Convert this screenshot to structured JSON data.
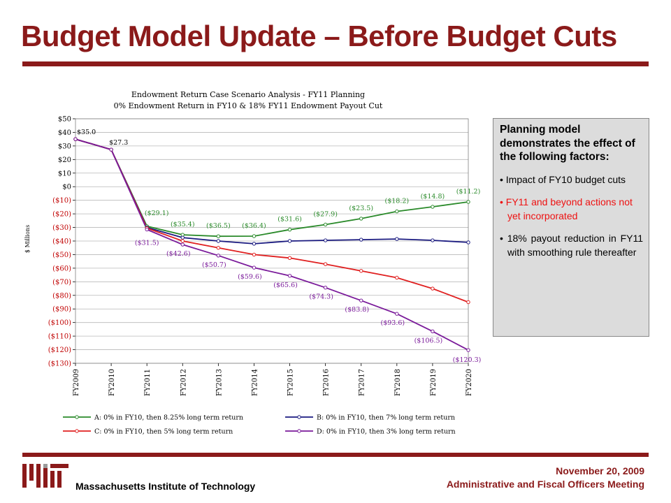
{
  "slide": {
    "title": "Budget Model Update – Before Budget Cuts",
    "org": "Massachusetts Institute of Technology",
    "date": "November 20, 2009",
    "meeting": "Administrative and Fiscal Officers Meeting"
  },
  "callout": {
    "heading": "Planning model demonstrates the effect of the following factors:",
    "items": [
      {
        "text": "• Impact of FY10 budget cuts"
      },
      {
        "text": "• FY11 and beyond actions not yet incorporated"
      },
      {
        "text": "• 18% payout reduction in FY11 with smoothing rule thereafter"
      }
    ]
  },
  "chart_data": {
    "type": "line",
    "title": "Endowment Return Case Scenario Analysis - FY11 Planning",
    "subtitle": "0% Endowment Return in FY10 & 18% FY11 Endowment Payout Cut",
    "ylabel": "$ Millions",
    "ylim": [
      -130,
      50
    ],
    "yticks": [
      50,
      40,
      30,
      20,
      10,
      0,
      -10,
      -20,
      -30,
      -40,
      -50,
      -60,
      -70,
      -80,
      -90,
      -100,
      -110,
      -120,
      -130
    ],
    "ytick_labels": [
      "$50",
      "$40",
      "$30",
      "$20",
      "$10",
      "$0",
      "($10)",
      "($20)",
      "($30)",
      "($40)",
      "($50)",
      "($60)",
      "($70)",
      "($80)",
      "($90)",
      "($100)",
      "($110)",
      "($120)",
      "($130)"
    ],
    "grid": true,
    "legend_position": "bottom",
    "categories": [
      "FY2009",
      "FY2010",
      "FY2011",
      "FY2012",
      "FY2013",
      "FY2014",
      "FY2015",
      "FY2016",
      "FY2017",
      "FY2018",
      "FY2019",
      "FY2020"
    ],
    "series": [
      {
        "name": "A: 0% in FY10, then 8.25% long term return",
        "color": "#2a8a2a",
        "values": [
          35.0,
          27.3,
          -29.1,
          -35.4,
          -36.5,
          -36.4,
          -31.6,
          -27.9,
          -23.5,
          -18.2,
          -14.8,
          -11.2
        ]
      },
      {
        "name": "B: 0% in FY10, then 7% long term return",
        "color": "#1a1a80",
        "values": [
          35.0,
          27.3,
          -30.0,
          -37.5,
          -40.0,
          -42.0,
          -40.0,
          -39.5,
          -39.0,
          -38.5,
          -39.5,
          -41.0
        ]
      },
      {
        "name": "C: 0% in FY10, then 5% long term return",
        "color": "#e02020",
        "values": [
          35.0,
          27.3,
          -30.5,
          -40.0,
          -45.0,
          -50.0,
          -52.5,
          -57.0,
          -62.0,
          -67.0,
          -75.0,
          -85.0
        ]
      },
      {
        "name": "D: 0% in FY10, then 3% long term return",
        "color": "#7a1a9a",
        "values": [
          35.0,
          27.3,
          -31.5,
          -42.6,
          -50.7,
          -59.6,
          -65.6,
          -74.3,
          -83.8,
          -93.6,
          -106.5,
          -120.3
        ]
      }
    ],
    "annotations": [
      {
        "series": 0,
        "index": 0,
        "text": "$35.0"
      },
      {
        "series": 0,
        "index": 1,
        "text": "$27.3"
      },
      {
        "series": 0,
        "index": 2,
        "text": "($29.1)"
      },
      {
        "series": 0,
        "index": 3,
        "text": "($35.4)"
      },
      {
        "series": 0,
        "index": 4,
        "text": "($36.5)"
      },
      {
        "series": 0,
        "index": 5,
        "text": "($36.4)"
      },
      {
        "series": 0,
        "index": 6,
        "text": "($31.6)"
      },
      {
        "series": 0,
        "index": 7,
        "text": "($27.9)"
      },
      {
        "series": 0,
        "index": 8,
        "text": "($23.5)"
      },
      {
        "series": 0,
        "index": 9,
        "text": "($18.2)"
      },
      {
        "series": 0,
        "index": 10,
        "text": "($14.8)"
      },
      {
        "series": 0,
        "index": 11,
        "text": "($11.2)"
      },
      {
        "series": 3,
        "index": 2,
        "text": "($31.5)"
      },
      {
        "series": 3,
        "index": 3,
        "text": "($42.6)"
      },
      {
        "series": 3,
        "index": 4,
        "text": "($50.7)"
      },
      {
        "series": 3,
        "index": 5,
        "text": "($59.6)"
      },
      {
        "series": 3,
        "index": 6,
        "text": "($65.6)"
      },
      {
        "series": 3,
        "index": 7,
        "text": "($74.3)"
      },
      {
        "series": 3,
        "index": 8,
        "text": "($83.8)"
      },
      {
        "series": 3,
        "index": 9,
        "text": "($93.6)"
      },
      {
        "series": 3,
        "index": 10,
        "text": "($106.5)"
      },
      {
        "series": 3,
        "index": 11,
        "text": "($120.3)"
      }
    ]
  }
}
